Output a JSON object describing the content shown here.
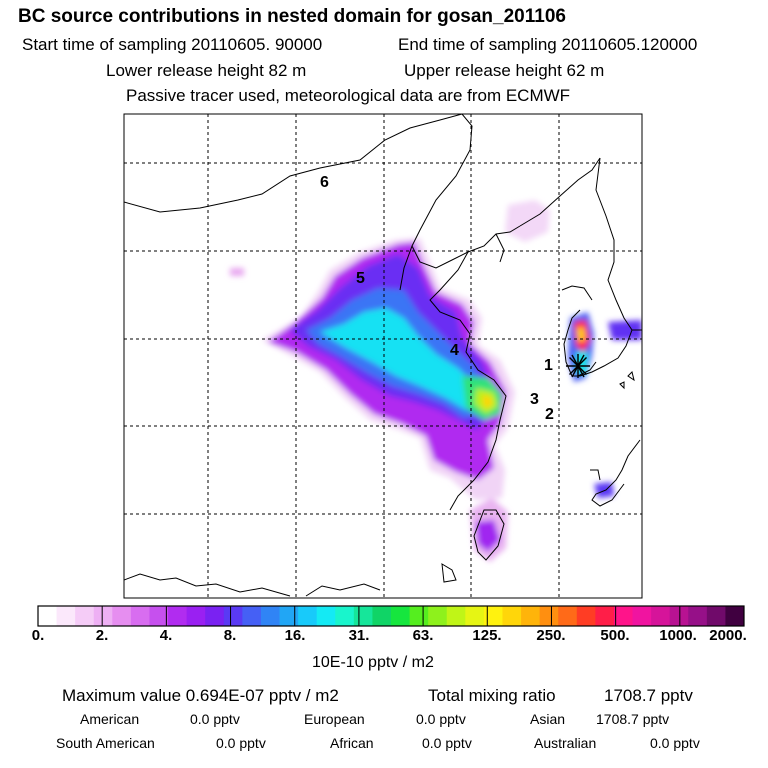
{
  "header": {
    "title": "BC  source contributions in nested domain for gosan_201106",
    "start": "Start time of sampling 20110605. 90000",
    "end": "End time of sampling 20110605.120000",
    "lower": "Lower release height   82 m",
    "upper": "Upper release height   62 m",
    "note": "Passive tracer used, meteorological data are from ECMWF"
  },
  "map": {
    "labels": [
      "6",
      "5",
      "4",
      "1",
      "3",
      "2"
    ],
    "receptor_marker": "asterisk-marker-icon"
  },
  "colorbar": {
    "ticks": [
      "0.",
      "2.",
      "4.",
      "8.",
      "16.",
      "31.",
      "63.",
      "125.",
      "250.",
      "500.",
      "1000.",
      "2000."
    ],
    "unit": "10E-10 pptv / m2",
    "colors": [
      "#ffffff",
      "#fbe8fb",
      "#f5ccf7",
      "#eeb0f4",
      "#e68ef0",
      "#d86df0",
      "#c650ee",
      "#b12cf0",
      "#9a20f2",
      "#7a22f2",
      "#5a3af4",
      "#4560f5",
      "#3084f5",
      "#21a6f5",
      "#18cafa",
      "#14eaf4",
      "#19f5cc",
      "#16e69a",
      "#10d466",
      "#16e63e",
      "#55ee1f",
      "#8ef11c",
      "#c0f517",
      "#e6f514",
      "#fff20f",
      "#ffd60a",
      "#ffb40a",
      "#ff8f10",
      "#ff6a18",
      "#ff3d24",
      "#ff1e48",
      "#ff148a",
      "#f014a0",
      "#d6149a",
      "#b81292",
      "#961088",
      "#700a6a",
      "#400040"
    ]
  },
  "footer": {
    "max_value": "Maximum value  0.694E-07 pptv / m2",
    "total_label": "Total mixing ratio",
    "total_value": "1708.7 pptv",
    "american_label": "American",
    "american_value": "0.0 pptv",
    "european_label": "European",
    "european_value": "0.0 pptv",
    "asian_label": "Asian",
    "asian_value": "1708.7 pptv",
    "south_american_label": "South American",
    "south_american_value": "0.0 pptv",
    "african_label": "African",
    "african_value": "0.0 pptv",
    "australian_label": "Australian",
    "australian_value": "0.0 pptv"
  }
}
